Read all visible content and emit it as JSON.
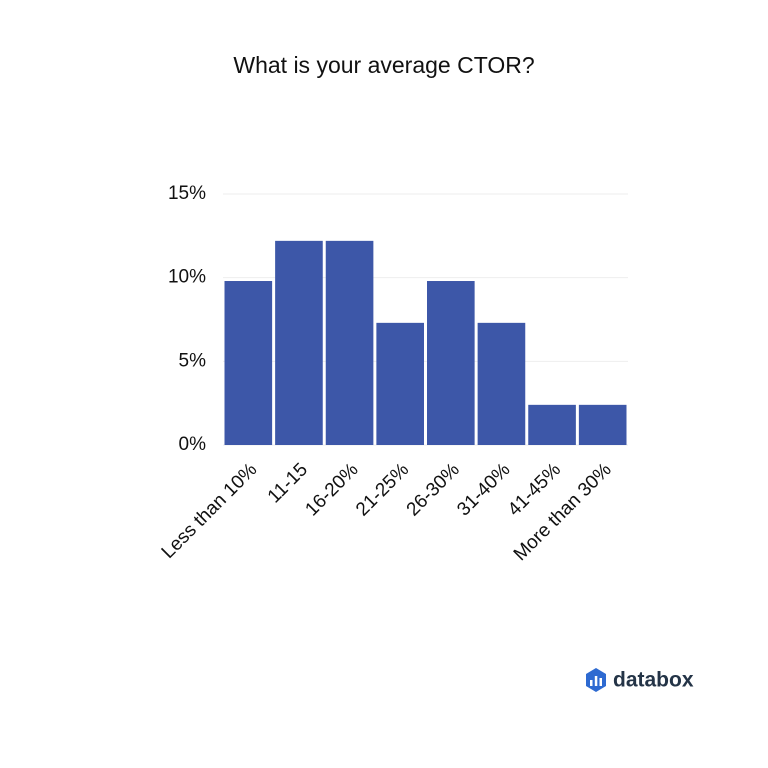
{
  "chart_data": {
    "type": "bar",
    "title": "What is your average CTOR?",
    "categories": [
      "Less than 10%",
      "11-15",
      "16-20%",
      "21-25%",
      "26-30%",
      "31-40%",
      "41-45%",
      "More than 30%"
    ],
    "values": [
      9.8,
      12.2,
      12.2,
      7.3,
      9.8,
      7.3,
      2.4,
      2.4
    ],
    "color": "#3d57a8",
    "ylim": [
      0,
      15
    ],
    "yticks": [
      {
        "value": 0,
        "label": "0%"
      },
      {
        "value": 5,
        "label": "5%"
      },
      {
        "value": 10,
        "label": "10%"
      },
      {
        "value": 15,
        "label": "15%"
      }
    ],
    "grid": true
  },
  "logo_text": "databox"
}
